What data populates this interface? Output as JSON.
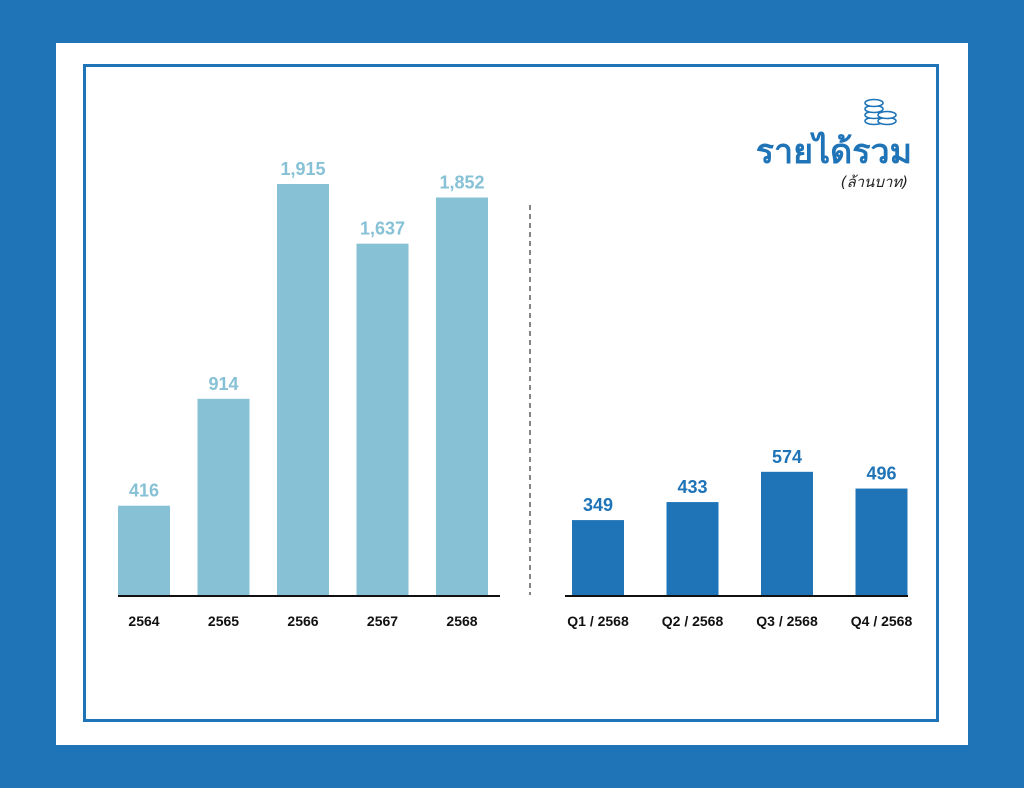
{
  "colors": {
    "background": "#1f74b8",
    "annual_bar": "#86c1d6",
    "quarterly_bar": "#1f74b8",
    "axis": "#111111",
    "divider": "#333333"
  },
  "header": {
    "title": "รายได้รวม",
    "unit": "(ล้านบาท)",
    "icon": "coins-stack-icon"
  },
  "chart_data": [
    {
      "type": "bar",
      "categories": [
        "2564",
        "2565",
        "2566",
        "2567",
        "2568"
      ],
      "values": [
        416,
        914,
        1915,
        1637,
        1852
      ],
      "data_labels": [
        "416",
        "914",
        "1,915",
        "1,637",
        "1,852"
      ],
      "color": "#86c1d6"
    },
    {
      "type": "bar",
      "categories": [
        "Q1 / 2568",
        "Q2 / 2568",
        "Q3 / 2568",
        "Q4 / 2568"
      ],
      "values": [
        349,
        433,
        574,
        496
      ],
      "data_labels": [
        "349",
        "433",
        "574",
        "496"
      ],
      "color": "#1f74b8"
    }
  ]
}
